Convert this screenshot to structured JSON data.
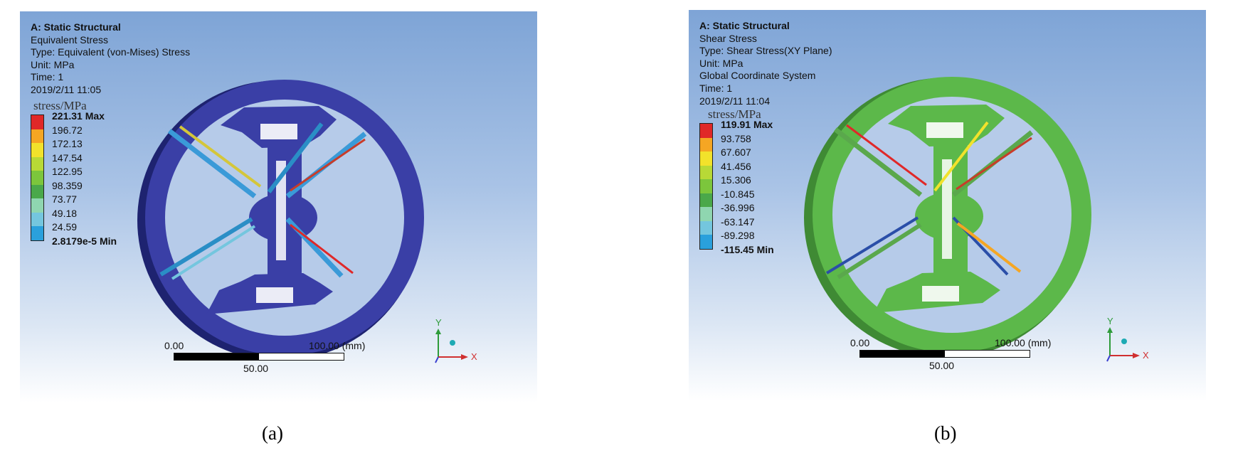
{
  "panels": [
    {
      "id": "a",
      "header": [
        "A: Static Structural",
        "Equivalent Stress",
        "Type: Equivalent (von-Mises) Stress",
        "Unit: MPa",
        "Time: 1",
        "2019/2/11 11:05"
      ],
      "legend_unit": "stress/MPa",
      "legend_values": [
        "221.31 Max",
        "196.72",
        "172.13",
        "147.54",
        "122.95",
        "98.359",
        "73.77",
        "49.18",
        "24.59",
        "2.8179e-5 Min"
      ],
      "model_color": "#3a3fa6",
      "scale": {
        "left": "0.00",
        "right": "100.00 (mm)",
        "mid": "50.00"
      },
      "axes": {
        "y": "Y",
        "x": "X"
      },
      "caption": "(a)"
    },
    {
      "id": "b",
      "header": [
        "A: Static Structural",
        "Shear Stress",
        "Type: Shear Stress(XY Plane)",
        "Unit: MPa",
        "Global Coordinate System",
        "Time: 1",
        "2019/2/11 11:04"
      ],
      "legend_unit": "stress/MPa",
      "legend_values": [
        "119.91 Max",
        "93.758",
        "67.607",
        "41.456",
        "15.306",
        "-10.845",
        "-36.996",
        "-63.147",
        "-89.298",
        "-115.45 Min"
      ],
      "model_color": "#5cb84a",
      "scale": {
        "left": "0.00",
        "right": "100.00 (mm)",
        "mid": "50.00"
      },
      "axes": {
        "y": "Y",
        "x": "X"
      },
      "caption": "(b)"
    }
  ],
  "legend_colors": [
    "#e02828",
    "#f5a623",
    "#f2e22b",
    "#b8d936",
    "#7cc63c",
    "#4aa84a",
    "#8fd6b0",
    "#74c6de",
    "#2aa0dc",
    "#2a4ea8"
  ]
}
